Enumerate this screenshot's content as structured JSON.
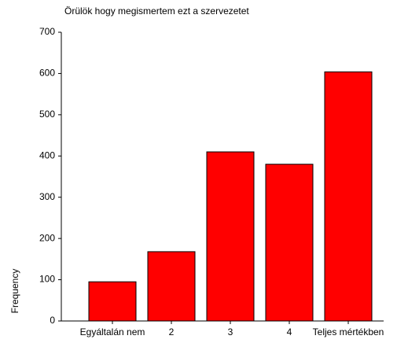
{
  "chart_data": {
    "type": "bar",
    "title": "Örülök hogy megismertem ezt a szervezetet",
    "y_label": "Frequency",
    "categories": [
      "Egyáltalán nem",
      "2",
      "3",
      "4",
      "Teljes mértékben"
    ],
    "values": [
      95,
      168,
      410,
      380,
      604
    ],
    "color": "#ff0000",
    "ylim": [
      0,
      700
    ],
    "yticks": [
      0,
      100,
      200,
      300,
      400,
      500,
      600,
      700
    ],
    "grid": false
  }
}
